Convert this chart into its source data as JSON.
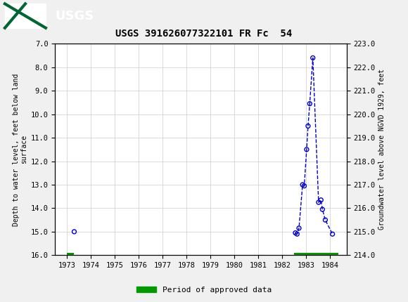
{
  "title": "USGS 391626077322101 FR Fc  54",
  "ylabel_left": "Depth to water level, feet below land\nsurface",
  "ylabel_right": "Groundwater level above NGVD 1929, feet",
  "ylim_left": [
    16.0,
    7.0
  ],
  "ylim_right": [
    214.0,
    223.0
  ],
  "xlim": [
    1972.5,
    1984.7
  ],
  "yticks_left": [
    7.0,
    8.0,
    9.0,
    10.0,
    11.0,
    12.0,
    13.0,
    14.0,
    15.0,
    16.0
  ],
  "yticks_right": [
    214.0,
    215.0,
    216.0,
    217.0,
    218.0,
    219.0,
    220.0,
    221.0,
    222.0,
    223.0
  ],
  "xticks": [
    1973,
    1974,
    1975,
    1976,
    1977,
    1978,
    1979,
    1980,
    1981,
    1982,
    1983,
    1984
  ],
  "data_segments": [
    {
      "x": [
        1973.3
      ],
      "depth": [
        15.0
      ]
    },
    {
      "x": [
        1982.55,
        1982.62,
        1982.7,
        1982.85,
        1982.92,
        1983.02,
        1983.08,
        1983.15,
        1983.28,
        1983.52,
        1983.62,
        1983.68,
        1983.8,
        1984.1
      ],
      "depth": [
        15.05,
        15.1,
        14.85,
        13.0,
        13.05,
        11.5,
        10.5,
        9.55,
        7.6,
        13.75,
        13.65,
        14.05,
        14.5,
        15.1
      ]
    }
  ],
  "line_color": "#0000CC",
  "marker_edge_color": "#0000CC",
  "background_color": "#f0f0f0",
  "plot_bg_color": "#ffffff",
  "header_bg_color": "#006633",
  "grid_color": "#cccccc",
  "approved_segments": [
    {
      "x_start": 1973.0,
      "x_end": 1973.28
    },
    {
      "x_start": 1982.48,
      "x_end": 1984.35
    }
  ],
  "approved_bar_color": "#009900",
  "legend_label": "Period of approved data"
}
